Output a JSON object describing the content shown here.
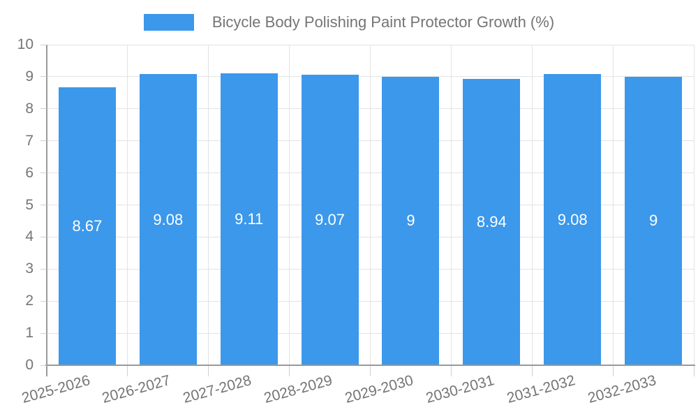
{
  "legend": {
    "label": "Bicycle Body Polishing Paint Protector Growth (%)"
  },
  "chart_data": {
    "type": "bar",
    "title": "Bicycle Body Polishing Paint Protector Growth (%)",
    "legend_entries": [
      "Bicycle Body Polishing Paint Protector Growth (%)"
    ],
    "legend_position": "top-center",
    "categories": [
      "2025-2026",
      "2026-2027",
      "2027-2028",
      "2028-2029",
      "2029-2030",
      "2030-2031",
      "2031-2032",
      "2032-2033"
    ],
    "values": [
      8.67,
      9.08,
      9.11,
      9.07,
      9,
      8.94,
      9.08,
      9
    ],
    "value_labels": [
      "8.67",
      "9.08",
      "9.11",
      "9.07",
      "9",
      "8.94",
      "9.08",
      "9"
    ],
    "xlabel": "",
    "ylabel": "",
    "ylim": [
      0,
      10
    ],
    "ytick_labels": [
      "0",
      "1",
      "2",
      "3",
      "4",
      "5",
      "6",
      "7",
      "8",
      "9",
      "10"
    ],
    "grid": true,
    "colors": {
      "bar": "#3B98EB",
      "grid_line": "#E3E3E3",
      "axis_line": "#999999",
      "tick_line": "#CFCFCF",
      "axis_text": "#757575",
      "bar_label_text": "#FFFFFF"
    }
  }
}
